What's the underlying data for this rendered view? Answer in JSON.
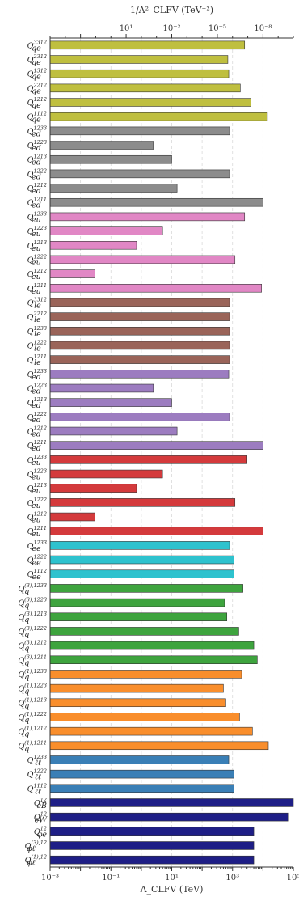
{
  "chart_data": {
    "type": "bar",
    "orientation": "horizontal",
    "xscale": "log",
    "xlim": [
      0.001,
      100000
    ],
    "grid": true,
    "xlabel": "Λ_CLFV (TeV)",
    "top_xlabel": "1/Λ²_CLFV (TeV⁻²)",
    "xticks": [
      {
        "value": 0.001,
        "label": "10⁻³"
      },
      {
        "value": 0.1,
        "label": "10⁻¹"
      },
      {
        "value": 10,
        "label": "10¹"
      },
      {
        "value": 1000,
        "label": "10³"
      },
      {
        "value": 100000,
        "label": "10⁵"
      }
    ],
    "top_xticks": [
      {
        "value": 10,
        "label": "10¹"
      },
      {
        "value": 0.01,
        "label": "10⁻²"
      },
      {
        "value": 1e-05,
        "label": "10⁻⁵"
      },
      {
        "value": 1e-08,
        "label": "10⁻⁸"
      }
    ],
    "colors": {
      "qe": "#bfbf3f",
      "ed": "#8c8c8c",
      "eu": "#e187c5",
      "le": "#9a6459",
      "ed_l": "#9c7cc0",
      "eu_r": "#d43a3c",
      "ee": "#2ec2ce",
      "lq3": "#3ea43e",
      "lq1": "#f98e2c",
      "ll": "#3a7fb6",
      "dip": "#1e1e86"
    },
    "categories": [
      {
        "base": "Q",
        "sub": "qe",
        "sup": "3312",
        "value": 2500,
        "color": "qe"
      },
      {
        "base": "Q",
        "sub": "qe",
        "sup": "2312",
        "value": 700,
        "color": "qe"
      },
      {
        "base": "Q",
        "sub": "qe",
        "sup": "1312",
        "value": 750,
        "color": "qe"
      },
      {
        "base": "Q",
        "sub": "qe",
        "sup": "2212",
        "value": 1800,
        "color": "qe"
      },
      {
        "base": "Q",
        "sub": "qe",
        "sup": "1212",
        "value": 4000,
        "color": "qe"
      },
      {
        "base": "Q",
        "sub": "qe",
        "sup": "1112",
        "value": 14000,
        "color": "qe"
      },
      {
        "base": "Q",
        "sub": "ed",
        "sup": "1233",
        "value": 800,
        "color": "ed"
      },
      {
        "base": "Q",
        "sub": "ed",
        "sup": "1223",
        "value": 2.5,
        "color": "ed"
      },
      {
        "base": "Q",
        "sub": "ed",
        "sup": "1213",
        "value": 10,
        "color": "ed"
      },
      {
        "base": "Q",
        "sub": "ed",
        "sup": "1222",
        "value": 800,
        "color": "ed"
      },
      {
        "base": "Q",
        "sub": "ed",
        "sup": "1212",
        "value": 15,
        "color": "ed"
      },
      {
        "base": "Q",
        "sub": "ed",
        "sup": "1211",
        "value": 10000,
        "color": "ed"
      },
      {
        "base": "Q",
        "sub": "eu",
        "sup": "1233",
        "value": 2500,
        "color": "eu"
      },
      {
        "base": "Q",
        "sub": "eu",
        "sup": "1223",
        "value": 5,
        "color": "eu"
      },
      {
        "base": "Q",
        "sub": "eu",
        "sup": "1213",
        "value": 0.7,
        "color": "eu"
      },
      {
        "base": "Q",
        "sub": "eu",
        "sup": "1222",
        "value": 1200,
        "color": "eu"
      },
      {
        "base": "Q",
        "sub": "eu",
        "sup": "1212",
        "value": 0.03,
        "color": "eu"
      },
      {
        "base": "Q",
        "sub": "eu",
        "sup": "1211",
        "value": 9000,
        "color": "eu"
      },
      {
        "base": "Q",
        "sub": "le",
        "sup": "3312",
        "value": 800,
        "color": "le"
      },
      {
        "base": "Q",
        "sub": "le",
        "sup": "2212",
        "value": 800,
        "color": "le"
      },
      {
        "base": "Q",
        "sub": "le",
        "sup": "1233",
        "value": 800,
        "color": "le"
      },
      {
        "base": "Q",
        "sub": "le",
        "sup": "1222",
        "value": 800,
        "color": "le"
      },
      {
        "base": "Q",
        "sub": "le",
        "sup": "1211",
        "value": 800,
        "color": "le"
      },
      {
        "base": "Q",
        "sub": "ed",
        "sup": "1233",
        "value": 750,
        "color": "ed_l"
      },
      {
        "base": "Q",
        "sub": "ed",
        "sup": "1223",
        "value": 2.5,
        "color": "ed_l"
      },
      {
        "base": "Q",
        "sub": "ed",
        "sup": "1213",
        "value": 10,
        "color": "ed_l"
      },
      {
        "base": "Q",
        "sub": "ed",
        "sup": "1222",
        "value": 800,
        "color": "ed_l"
      },
      {
        "base": "Q",
        "sub": "ed",
        "sup": "1212",
        "value": 15,
        "color": "ed_l"
      },
      {
        "base": "Q",
        "sub": "ed",
        "sup": "1211",
        "value": 10000,
        "color": "ed_l"
      },
      {
        "base": "Q",
        "sub": "eu",
        "sup": "1233",
        "value": 3000,
        "color": "eu_r"
      },
      {
        "base": "Q",
        "sub": "eu",
        "sup": "1223",
        "value": 5,
        "color": "eu_r"
      },
      {
        "base": "Q",
        "sub": "eu",
        "sup": "1213",
        "value": 0.7,
        "color": "eu_r"
      },
      {
        "base": "Q",
        "sub": "eu",
        "sup": "1222",
        "value": 1200,
        "color": "eu_r"
      },
      {
        "base": "Q",
        "sub": "eu",
        "sup": "1212",
        "value": 0.03,
        "color": "eu_r"
      },
      {
        "base": "Q",
        "sub": "eu",
        "sup": "1211",
        "value": 10000,
        "color": "eu_r"
      },
      {
        "base": "Q",
        "sub": "ee",
        "sup": "1233",
        "value": 800,
        "color": "ee"
      },
      {
        "base": "Q",
        "sub": "ee",
        "sup": "1222",
        "value": 1100,
        "color": "ee"
      },
      {
        "base": "Q",
        "sub": "ee",
        "sup": "1112",
        "value": 1100,
        "color": "ee"
      },
      {
        "base": "Q",
        "sub": "lq",
        "sup": "(3),1233",
        "value": 2200,
        "color": "lq3"
      },
      {
        "base": "Q",
        "sub": "lq",
        "sup": "(3),1223",
        "value": 550,
        "color": "lq3"
      },
      {
        "base": "Q",
        "sub": "lq",
        "sup": "(3),1213",
        "value": 650,
        "color": "lq3"
      },
      {
        "base": "Q",
        "sub": "lq",
        "sup": "(3),1222",
        "value": 1600,
        "color": "lq3"
      },
      {
        "base": "Q",
        "sub": "lq",
        "sup": "(3),1212",
        "value": 5000,
        "color": "lq3"
      },
      {
        "base": "Q",
        "sub": "lq",
        "sup": "(3),1211",
        "value": 6500,
        "color": "lq3"
      },
      {
        "base": "Q",
        "sub": "lq",
        "sup": "(1),1233",
        "value": 2000,
        "color": "lq1"
      },
      {
        "base": "Q",
        "sub": "lq",
        "sup": "(1),1223",
        "value": 500,
        "color": "lq1"
      },
      {
        "base": "Q",
        "sub": "lq",
        "sup": "(1),1213",
        "value": 600,
        "color": "lq1"
      },
      {
        "base": "Q",
        "sub": "lq",
        "sup": "(1),1222",
        "value": 1700,
        "color": "lq1"
      },
      {
        "base": "Q",
        "sub": "lq",
        "sup": "(1),1212",
        "value": 4500,
        "color": "lq1"
      },
      {
        "base": "Q",
        "sub": "lq",
        "sup": "(1),1211",
        "value": 15000,
        "color": "lq1"
      },
      {
        "base": "Q",
        "sub": "ℓℓ",
        "sup": "1233",
        "value": 750,
        "color": "ll"
      },
      {
        "base": "Q",
        "sub": "ℓℓ",
        "sup": "1222",
        "value": 1100,
        "color": "ll"
      },
      {
        "base": "Q",
        "sub": "ℓℓ",
        "sup": "1112",
        "value": 1100,
        "color": "ll"
      },
      {
        "base": "Q",
        "sub": "eB",
        "sup": "12",
        "value": 100000,
        "color": "dip"
      },
      {
        "base": "Q",
        "sub": "eW",
        "sup": "12",
        "value": 70000,
        "color": "dip"
      },
      {
        "base": "Q",
        "sub": "φe",
        "sup": "12",
        "value": 5000,
        "color": "dip"
      },
      {
        "base": "Q",
        "sub": "φℓ",
        "sup": "(3),12",
        "value": 5000,
        "color": "dip"
      },
      {
        "base": "Q",
        "sub": "φℓ",
        "sup": "(1),12",
        "value": 5000,
        "color": "dip"
      }
    ]
  }
}
